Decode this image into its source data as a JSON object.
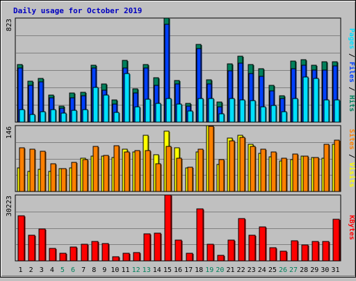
{
  "colors": {
    "background": "#c0c0c0",
    "plot_background": "#c0c0c0",
    "grid": "#808080",
    "title": "#0000c0",
    "hits": "#00805c",
    "files": "#0040ff",
    "pages": "#00e0ff",
    "visits": "#ffff00",
    "sites": "#ff8000",
    "kbytes": "#ff0000",
    "day_weekday": "#000000",
    "day_weekend": "#00805c"
  },
  "chart_data": {
    "title": "Daily usage for October 2019",
    "type": "bar",
    "days": [
      "1",
      "2",
      "3",
      "4",
      "5",
      "6",
      "7",
      "8",
      "9",
      "10",
      "11",
      "12",
      "13",
      "14",
      "15",
      "16",
      "17",
      "18",
      "19",
      "20",
      "21",
      "22",
      "23",
      "24",
      "25",
      "26",
      "27",
      "28",
      "29",
      "30",
      "31"
    ],
    "weekend_days": [
      "5",
      "6",
      "12",
      "13",
      "19",
      "20",
      "26",
      "27"
    ],
    "panels": [
      {
        "ymax_label": "823",
        "ymax": 823,
        "legend": [
          {
            "text": "Hits",
            "color_key": "hits"
          },
          {
            "text": "/",
            "color_key": "day_weekday"
          },
          {
            "text": "Files",
            "color_key": "files"
          },
          {
            "text": "/",
            "color_key": "day_weekday"
          },
          {
            "text": "Pages",
            "color_key": "pages"
          }
        ],
        "series": [
          {
            "name": "Hits",
            "color_key": "hits",
            "values": [
              456,
              324,
              347,
              214,
              128,
              231,
              235,
              450,
              300,
              176,
              490,
              263,
              453,
              352,
              823,
              327,
              150,
              613,
              336,
              160,
              460,
              522,
              457,
              422,
              289,
              206,
              482,
              493,
              452,
              480,
              478
            ]
          },
          {
            "name": "Files",
            "color_key": "files",
            "values": [
              428,
              293,
              318,
              192,
              109,
              192,
              207,
              428,
              253,
              143,
              428,
              230,
              428,
              293,
              775,
              303,
              128,
              582,
              300,
              118,
              406,
              466,
              385,
              364,
              247,
              186,
              421,
              452,
              410,
              412,
              445
            ]
          },
          {
            "name": "Pages",
            "color_key": "pages",
            "values": [
              97,
              60,
              85,
              97,
              70,
              93,
              97,
              277,
              213,
              79,
              385,
              118,
              180,
              149,
              188,
              143,
              88,
              187,
              188,
              66,
              189,
              175,
              171,
              123,
              131,
              80,
              187,
              357,
              346,
              175,
              175
            ]
          }
        ]
      },
      {
        "ymax_label": "146",
        "ymax": 146,
        "legend": [
          {
            "text": "Visits",
            "color_key": "visits"
          },
          {
            "text": "/",
            "color_key": "day_weekday"
          },
          {
            "text": "Sites",
            "color_key": "sites"
          }
        ],
        "series": [
          {
            "name": "Visits",
            "color_key": "visits",
            "values": [
              53,
              45,
              49,
              44,
              50,
              52,
              73,
              79,
              78,
              75,
              94,
              87,
              124,
              82,
              134,
              97,
              52,
              87,
              146,
              60,
              119,
              124,
              105,
              85,
              77,
              67,
              71,
              79,
              76,
              74,
              104
            ]
          },
          {
            "name": "Sites",
            "color_key": "sites",
            "values": [
              97,
              93,
              89,
              62,
              50,
              64,
              70,
              100,
              80,
              101,
              87,
              90,
              91,
              62,
              100,
              73,
              54,
              94,
              144,
              71,
              112,
              120,
              100,
              94,
              87,
              73,
              83,
              78,
              76,
              104,
              114
            ]
          }
        ]
      },
      {
        "ymax_label": "30223",
        "ymax": 30223,
        "legend": [
          {
            "text": "KBytes",
            "color_key": "kbytes"
          }
        ],
        "series": [
          {
            "name": "KBytes",
            "color_key": "kbytes",
            "values": [
              20800,
              11800,
              14600,
              5600,
              3600,
              6400,
              7600,
              8800,
              8000,
              1800,
              3400,
              3700,
              12400,
              12700,
              30223,
              9400,
              3500,
              24000,
              7500,
              2400,
              9600,
              19400,
              11800,
              15500,
              6100,
              4500,
              9100,
              7400,
              9000,
              9000,
              19200
            ]
          }
        ]
      }
    ]
  }
}
